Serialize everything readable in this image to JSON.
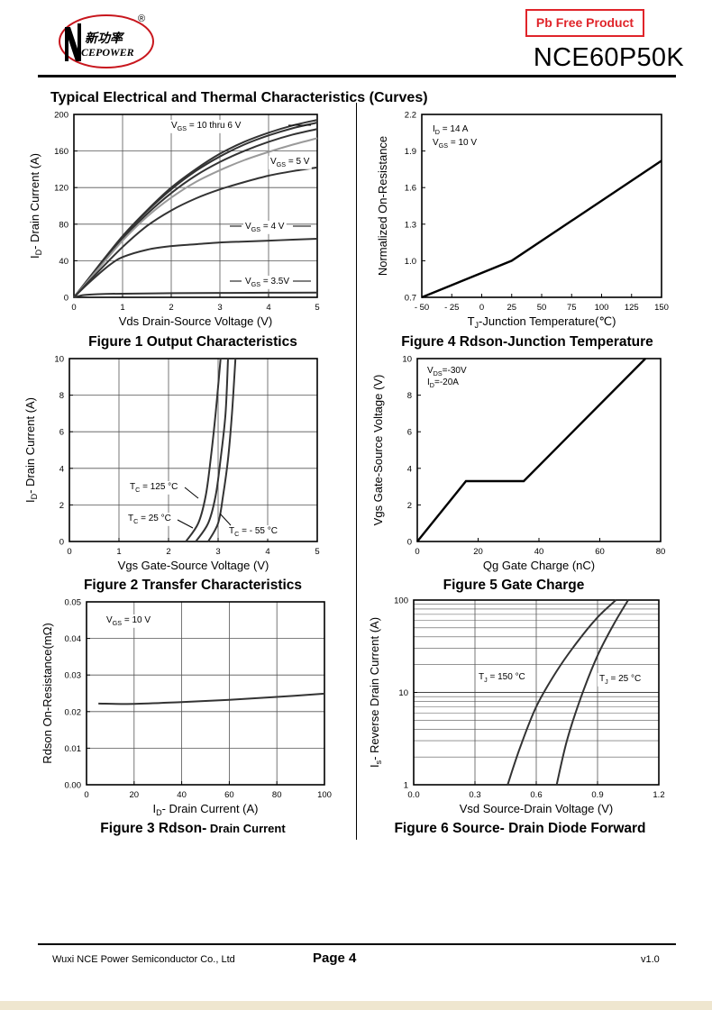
{
  "header": {
    "logo_text": "新功率",
    "logo_subtext": "CEPOWER",
    "logo_initial": "N",
    "registered_mark": "®",
    "pb_free": "Pb Free Product",
    "part_number": "NCE60P50K"
  },
  "section_title": "Typical Electrical and Thermal Characteristics (Curves)",
  "figures": {
    "fig1": {
      "caption": "Figure 1 Output Characteristics"
    },
    "fig2": {
      "caption": "Figure 2 Transfer Characteristics"
    },
    "fig3": {
      "caption_bold": "Figure 3 Rdson-",
      "caption_small": " Drain Current"
    },
    "fig4": {
      "caption": "Figure 4 Rdson-Junction Temperature"
    },
    "fig5": {
      "caption": "Figure 5 Gate Charge"
    },
    "fig6": {
      "caption": "Figure 6 Source- Drain Diode Forward"
    }
  },
  "footer": {
    "company": "Wuxi NCE Power Semiconductor Co., Ltd",
    "page": "Page  4",
    "version": "v1.0"
  },
  "chart_data": [
    {
      "id": "fig1",
      "type": "line",
      "xlabel": "Vds Drain-Source Voltage (V)",
      "ylabel": "ID- Drain Current (A)",
      "xlim": [
        0,
        5
      ],
      "ylim": [
        0,
        200
      ],
      "xticks": [
        0,
        1,
        2,
        3,
        4,
        5
      ],
      "yticks": [
        0,
        40,
        80,
        120,
        160,
        200
      ],
      "grid": true,
      "annotations": [
        "VGS = 10 thru 6 V",
        "VGS = 5 V",
        "VGS = 4 V",
        "VGS = 3.5V"
      ],
      "series": [
        {
          "color": "#333333",
          "x": [
            0,
            0.5,
            1,
            1.5,
            2,
            2.5,
            3,
            3.5,
            4,
            4.5,
            5
          ],
          "y": [
            0,
            34,
            67,
            95,
            120,
            140,
            157,
            170,
            180,
            188,
            194
          ]
        },
        {
          "color": "#333333",
          "x": [
            0,
            0.5,
            1,
            1.5,
            2,
            2.5,
            3,
            3.5,
            4,
            4.5,
            5
          ],
          "y": [
            0,
            33,
            66,
            94,
            118,
            138,
            154,
            167,
            177,
            185,
            191
          ]
        },
        {
          "color": "#333333",
          "x": [
            0,
            0.5,
            1,
            1.5,
            2,
            2.5,
            3,
            3.5,
            4,
            4.5,
            5
          ],
          "y": [
            0,
            32,
            64,
            91,
            114,
            133,
            148,
            160,
            170,
            178,
            184
          ]
        },
        {
          "color": "#9a9a9a",
          "x": [
            0,
            0.5,
            1,
            1.5,
            2,
            2.5,
            3,
            3.5,
            4,
            4.5,
            5
          ],
          "y": [
            0,
            31,
            62,
            88,
            109,
            126,
            139,
            150,
            159,
            167,
            174
          ]
        },
        {
          "color": "#333333",
          "x": [
            0,
            0.5,
            1,
            1.5,
            2,
            2.5,
            3,
            3.5,
            4,
            4.5,
            5
          ],
          "y": [
            0,
            28,
            55,
            78,
            95,
            108,
            118,
            126,
            133,
            138,
            142
          ]
        },
        {
          "color": "#333333",
          "x": [
            0,
            0.25,
            0.5,
            0.75,
            1,
            1.5,
            2,
            2.5,
            3,
            3.5,
            4,
            4.5,
            5
          ],
          "y": [
            0,
            13,
            25,
            36,
            44,
            52,
            56,
            58,
            60,
            61,
            62,
            63,
            64
          ]
        },
        {
          "color": "#333333",
          "x": [
            0,
            0.2,
            0.5,
            1,
            2,
            3,
            4,
            5
          ],
          "y": [
            0,
            2.5,
            3.5,
            4,
            4.5,
            4.8,
            5,
            5.2
          ]
        }
      ]
    },
    {
      "id": "fig4",
      "type": "line",
      "xlabel": "TJ-Junction Temperature(℃)",
      "ylabel": "Normalized On-Resistance",
      "xlim": [
        -50,
        150
      ],
      "ylim": [
        0.7,
        2.2
      ],
      "xticks": [
        -50,
        -25,
        0,
        25,
        50,
        75,
        100,
        125,
        150
      ],
      "yticks": [
        0.7,
        1.0,
        1.3,
        1.6,
        1.9,
        2.2
      ],
      "grid": false,
      "annotations": [
        "ID = 14 A",
        "VGS = 10 V"
      ],
      "series": [
        {
          "color": "#000000",
          "x": [
            -50,
            25,
            150
          ],
          "y": [
            0.7,
            1.0,
            1.82
          ]
        }
      ]
    },
    {
      "id": "fig2",
      "type": "line",
      "xlabel": "Vgs Gate-Source Voltage (V)",
      "ylabel": "ID- Drain Current (A)",
      "xlim": [
        0,
        5
      ],
      "ylim": [
        0,
        10
      ],
      "xticks": [
        0,
        1,
        2,
        3,
        4,
        5
      ],
      "yticks": [
        0,
        2,
        4,
        6,
        8,
        10
      ],
      "grid": true,
      "annotations": [
        "TC = 125 °C",
        "TC = 25 °C",
        "TC = - 55 °C"
      ],
      "series": [
        {
          "name": "TC = 125 °C",
          "color": "#333333",
          "x": [
            2.35,
            2.6,
            2.75,
            2.85,
            2.95,
            3.05
          ],
          "y": [
            0,
            1,
            2.5,
            4.5,
            7,
            10
          ]
        },
        {
          "name": "TC = 25 °C",
          "color": "#333333",
          "x": [
            2.55,
            2.8,
            2.95,
            3.05,
            3.15,
            3.2
          ],
          "y": [
            0,
            1,
            2.5,
            4.5,
            7,
            10
          ]
        },
        {
          "name": "TC = - 55 °C",
          "color": "#333333",
          "x": [
            2.8,
            3.0,
            3.1,
            3.2,
            3.28,
            3.35
          ],
          "y": [
            0,
            1,
            2.5,
            4.5,
            7,
            10
          ]
        }
      ]
    },
    {
      "id": "fig5",
      "type": "line",
      "xlabel": "Qg Gate Charge (nC)",
      "ylabel": "Vgs Gate-Source Voltage (V)",
      "xlim": [
        0,
        80
      ],
      "ylim": [
        0,
        10
      ],
      "xticks": [
        0,
        20,
        40,
        60,
        80
      ],
      "yticks": [
        0,
        2,
        4,
        6,
        8,
        10
      ],
      "grid": false,
      "annotations": [
        "VDS=-30V",
        "ID=-20A"
      ],
      "series": [
        {
          "color": "#000000",
          "x": [
            0,
            16,
            35,
            75
          ],
          "y": [
            0,
            3.3,
            3.3,
            10
          ]
        }
      ]
    },
    {
      "id": "fig3",
      "type": "line",
      "xlabel": "ID- Drain Current (A)",
      "ylabel": "Rdson On-Resistance(mΩ)",
      "xlim": [
        0,
        100
      ],
      "ylim": [
        0,
        0.05
      ],
      "xticks": [
        0,
        20,
        40,
        60,
        80,
        100
      ],
      "yticks": [
        0.0,
        0.01,
        0.02,
        0.03,
        0.04,
        0.05
      ],
      "grid": true,
      "annotations": [
        "VGS = 10 V"
      ],
      "series": [
        {
          "color": "#333333",
          "x": [
            5,
            20,
            40,
            60,
            80,
            100
          ],
          "y": [
            0.0222,
            0.0221,
            0.0226,
            0.0232,
            0.024,
            0.0249
          ]
        }
      ]
    },
    {
      "id": "fig6",
      "type": "line",
      "xlabel": "Vsd Source-Drain Voltage (V)",
      "ylabel": "Is- Reverse Drain Current (A)",
      "xlim": [
        0,
        1.2
      ],
      "ylim": [
        1,
        100
      ],
      "yscale": "log",
      "xticks": [
        0.0,
        0.3,
        0.6,
        0.9,
        1.2
      ],
      "yticks": [
        1,
        10,
        100
      ],
      "grid": true,
      "annotations": [
        "TJ = 150 °C",
        "TJ = 25 °C"
      ],
      "series": [
        {
          "name": "TJ = 150 °C",
          "color": "#333333",
          "x": [
            0.46,
            0.52,
            0.6,
            0.7,
            0.8,
            0.9,
            0.99
          ],
          "y": [
            1,
            2.5,
            7,
            17,
            35,
            65,
            100
          ]
        },
        {
          "name": "TJ = 25 °C",
          "color": "#333333",
          "x": [
            0.7,
            0.75,
            0.82,
            0.9,
            0.98,
            1.05
          ],
          "y": [
            1,
            3,
            9,
            25,
            55,
            100
          ]
        }
      ]
    }
  ]
}
